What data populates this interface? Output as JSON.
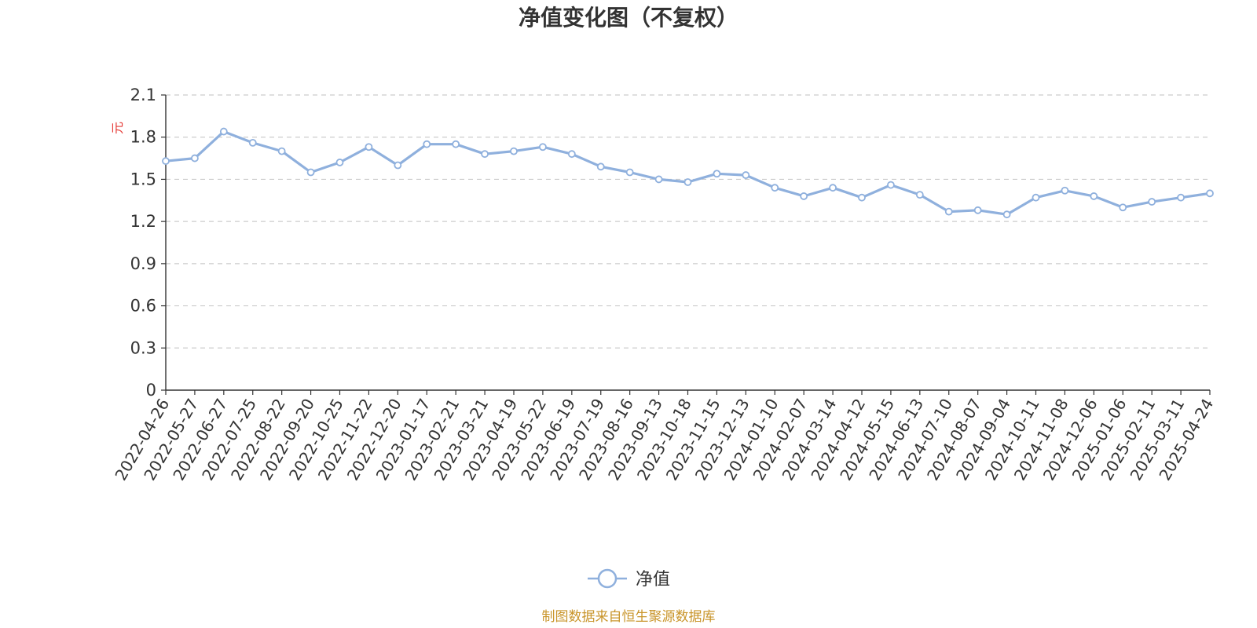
{
  "colors": {
    "line": "#8fb0dd",
    "grid": "#cccccc",
    "axis": "#333333",
    "unit": "#e53935",
    "source": "#c9952b"
  },
  "chart_data": {
    "type": "line",
    "title": "净值变化图（不复权）",
    "ylabel": "元",
    "ylim": [
      0,
      2.1
    ],
    "yticks": [
      "0",
      "0.3",
      "0.6",
      "0.9",
      "1.2",
      "1.5",
      "1.8",
      "2.1"
    ],
    "grid": true,
    "legend_position": "bottom-center",
    "x": [
      "2022-04-26",
      "2022-05-27",
      "2022-06-27",
      "2022-07-25",
      "2022-08-22",
      "2022-09-20",
      "2022-10-25",
      "2022-11-22",
      "2022-12-20",
      "2023-01-17",
      "2023-02-21",
      "2023-03-21",
      "2023-04-19",
      "2023-05-22",
      "2023-06-19",
      "2023-07-19",
      "2023-08-16",
      "2023-09-13",
      "2023-10-18",
      "2023-11-15",
      "2023-12-13",
      "2024-01-10",
      "2024-02-07",
      "2024-03-14",
      "2024-04-12",
      "2024-05-15",
      "2024-06-13",
      "2024-07-10",
      "2024-08-07",
      "2024-09-04",
      "2024-10-11",
      "2024-11-08",
      "2024-12-06",
      "2025-01-06",
      "2025-02-11",
      "2025-03-11",
      "2025-04-24"
    ],
    "series": [
      {
        "name": "净值",
        "values": [
          1.63,
          1.65,
          1.84,
          1.76,
          1.7,
          1.55,
          1.62,
          1.73,
          1.6,
          1.75,
          1.75,
          1.68,
          1.7,
          1.73,
          1.68,
          1.59,
          1.55,
          1.5,
          1.48,
          1.54,
          1.53,
          1.44,
          1.38,
          1.44,
          1.37,
          1.46,
          1.39,
          1.27,
          1.28,
          1.25,
          1.37,
          1.42,
          1.38,
          1.3,
          1.34,
          1.37,
          1.4
        ]
      }
    ],
    "source_note": "制图数据来自恒生聚源数据库"
  }
}
